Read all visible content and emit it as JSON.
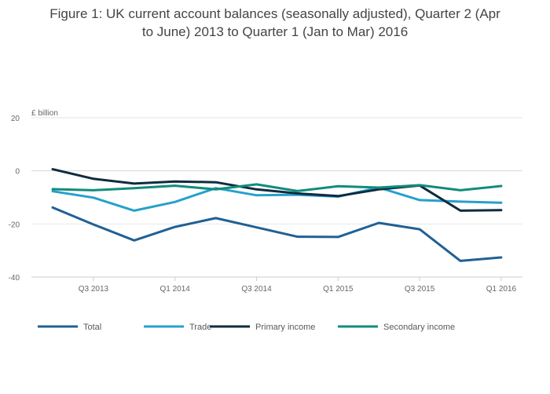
{
  "chart_data": {
    "type": "line",
    "title_lines": [
      "Figure 1: UK current account balances (seasonally adjusted), Quarter 2 (Apr",
      "to June) 2013 to Quarter 1 (Jan to Mar) 2016"
    ],
    "ylabel": "£ billion",
    "ylim": [
      -40,
      20
    ],
    "yticks": [
      20,
      0,
      -20,
      -40
    ],
    "ytick_labels": [
      "20",
      "0",
      "-20",
      "-40"
    ],
    "x": [
      "Q2 2013",
      "Q3 2013",
      "Q4 2013",
      "Q1 2014",
      "Q2 2014",
      "Q3 2014",
      "Q4 2014",
      "Q1 2015",
      "Q2 2015",
      "Q3 2015",
      "Q4 2015",
      "Q1 2016"
    ],
    "xtick_labels": [
      "Q3 2013",
      "Q1 2014",
      "Q3 2014",
      "Q1 2015",
      "Q3 2015",
      "Q1 2016"
    ],
    "grid": true,
    "legend_position": "bottom",
    "series": [
      {
        "name": "Total",
        "color": "#206095",
        "values": [
          -13.8,
          -20.2,
          -26.2,
          -21.1,
          -17.8,
          -21.3,
          -24.8,
          -24.9,
          -19.6,
          -22.0,
          -33.9,
          -32.6
        ]
      },
      {
        "name": "Trade",
        "color": "#27a0cc",
        "values": [
          -7.7,
          -10.1,
          -15.0,
          -11.7,
          -6.5,
          -9.2,
          -9.0,
          -9.7,
          -6.3,
          -11.0,
          -11.6,
          -12.0
        ]
      },
      {
        "name": "Primary income",
        "color": "#0f2b3e",
        "values": [
          0.6,
          -3.0,
          -4.8,
          -4.0,
          -4.3,
          -7.0,
          -8.5,
          -9.5,
          -7.0,
          -5.5,
          -15.0,
          -14.8
        ]
      },
      {
        "name": "Secondary income",
        "color": "#118c7b",
        "values": [
          -6.9,
          -7.3,
          -6.5,
          -5.6,
          -7.0,
          -5.1,
          -7.6,
          -5.8,
          -6.3,
          -5.4,
          -7.3,
          -5.7
        ]
      }
    ]
  }
}
